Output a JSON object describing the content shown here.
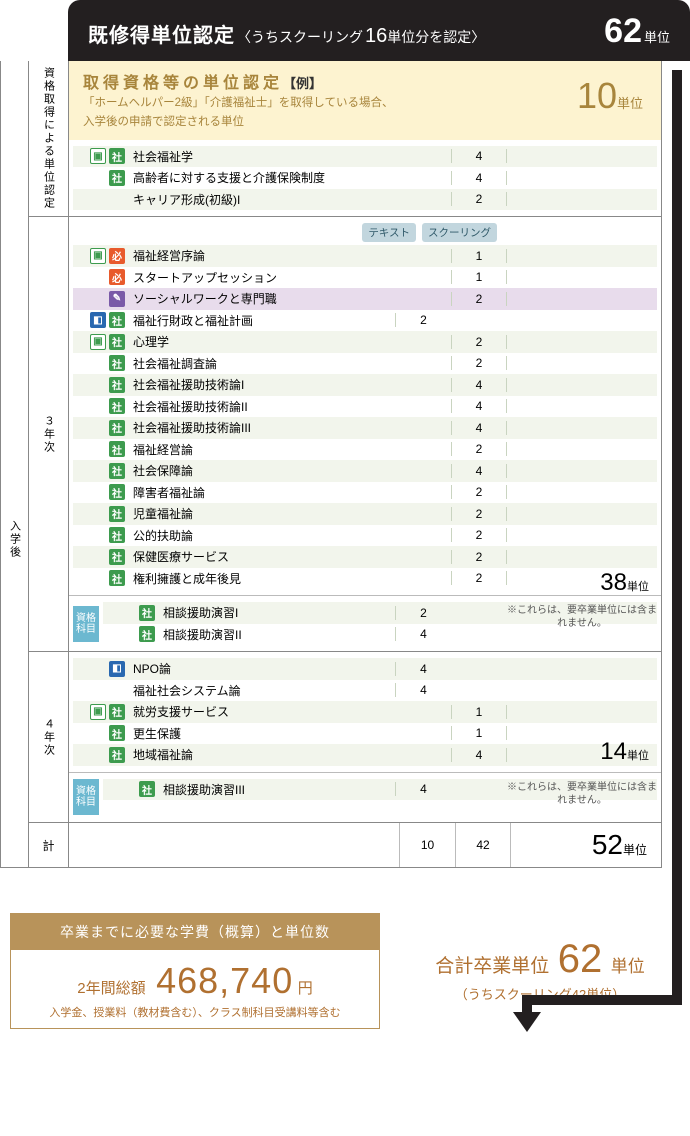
{
  "top": {
    "title": "既修得単位認定",
    "sub": "〈うちスクーリング",
    "hl": "16",
    "sub2": "単位分を認定〉",
    "value": "62",
    "unit": "単位"
  },
  "rails": {
    "post": "入学後",
    "c1": "資格取得による単位認定",
    "c2": "３年次",
    "c3": "４年次",
    "c4": "計"
  },
  "yellow": {
    "t1": "取得資格等の単位認定",
    "t2": "【例】",
    "l1": "「ホームヘルパー2級」「介護福祉士」を取得している場合、",
    "l2": "入学後の申請で認定される単位",
    "v": "10",
    "u": "単位"
  },
  "hdr": {
    "t": "テキスト",
    "s": "スクーリング"
  },
  "s1": [
    {
      "ic": [
        "pc",
        "sha"
      ],
      "name": "社会福祉学",
      "t": "",
      "s": "4"
    },
    {
      "ic": [
        "sha"
      ],
      "name": "高齢者に対する支援と介護保険制度",
      "t": "",
      "s": "4"
    },
    {
      "ic": [],
      "name": "キャリア形成(初級)I",
      "t": "",
      "s": "2"
    }
  ],
  "s2": [
    {
      "ic": [
        "pc",
        "hi"
      ],
      "name": "福祉経営序論",
      "t": "",
      "s": "1"
    },
    {
      "ic": [
        "hi"
      ],
      "name": "スタートアップセッション",
      "t": "",
      "s": "1"
    },
    {
      "ic": [
        "key"
      ],
      "name": "ソーシャルワークと専門職",
      "t": "",
      "s": "2",
      "purple": true
    },
    {
      "ic": [
        "doc",
        "sha"
      ],
      "name": "福祉行財政と福祉計画",
      "t": "2",
      "s": ""
    },
    {
      "ic": [
        "pc",
        "sha"
      ],
      "name": "心理学",
      "t": "",
      "s": "2"
    },
    {
      "ic": [
        "sha"
      ],
      "name": "社会福祉調査論",
      "t": "",
      "s": "2"
    },
    {
      "ic": [
        "sha"
      ],
      "name": "社会福祉援助技術論I",
      "t": "",
      "s": "4"
    },
    {
      "ic": [
        "sha"
      ],
      "name": "社会福祉援助技術論II",
      "t": "",
      "s": "4"
    },
    {
      "ic": [
        "sha"
      ],
      "name": "社会福祉援助技術論III",
      "t": "",
      "s": "4"
    },
    {
      "ic": [
        "sha"
      ],
      "name": "福祉経営論",
      "t": "",
      "s": "2"
    },
    {
      "ic": [
        "sha"
      ],
      "name": "社会保障論",
      "t": "",
      "s": "4"
    },
    {
      "ic": [
        "sha"
      ],
      "name": "障害者福祉論",
      "t": "",
      "s": "2"
    },
    {
      "ic": [
        "sha"
      ],
      "name": "児童福祉論",
      "t": "",
      "s": "2"
    },
    {
      "ic": [
        "sha"
      ],
      "name": "公的扶助論",
      "t": "",
      "s": "2"
    },
    {
      "ic": [
        "sha"
      ],
      "name": "保健医療サービス",
      "t": "",
      "s": "2"
    },
    {
      "ic": [
        "sha"
      ],
      "name": "権利擁護と成年後見",
      "t": "",
      "s": "2"
    }
  ],
  "s2u": {
    "v": "38",
    "u": "単位"
  },
  "s2b": [
    {
      "ic": [
        "sha"
      ],
      "name": "相談援助演習I",
      "t": "2",
      "s": ""
    },
    {
      "ic": [
        "sha"
      ],
      "name": "相談援助演習II",
      "t": "4",
      "s": ""
    }
  ],
  "note1": "※これらは、要卒業単位には含まれません。",
  "skk": "資格\n科目",
  "s3": [
    {
      "ic": [
        "doc"
      ],
      "name": "NPO論",
      "t": "4",
      "s": ""
    },
    {
      "ic": [],
      "name": "福祉社会システム論",
      "t": "4",
      "s": ""
    },
    {
      "ic": [
        "pc",
        "sha"
      ],
      "name": "就労支援サービス",
      "t": "",
      "s": "1"
    },
    {
      "ic": [
        "sha"
      ],
      "name": "更生保護",
      "t": "",
      "s": "1"
    },
    {
      "ic": [
        "sha"
      ],
      "name": "地域福祉論",
      "t": "",
      "s": "4"
    }
  ],
  "s3u": {
    "v": "14",
    "u": "単位"
  },
  "s3b": [
    {
      "ic": [
        "sha"
      ],
      "name": "相談援助演習III",
      "t": "4",
      "s": ""
    }
  ],
  "totals": {
    "t": "10",
    "s": "42",
    "v": "52",
    "u": "単位"
  },
  "fee": {
    "hdr": "卒業までに必要な学費（概算）と単位数",
    "a": "2年間総額",
    "b": "468,740",
    "c": "円",
    "l2": "入学金、授業料（教材費含む）、クラス制科目受講料等含む"
  },
  "sum": {
    "a": "合計卒業単位",
    "b": "62",
    "c": "単位",
    "l2": "（うちスクーリング42単位）"
  }
}
